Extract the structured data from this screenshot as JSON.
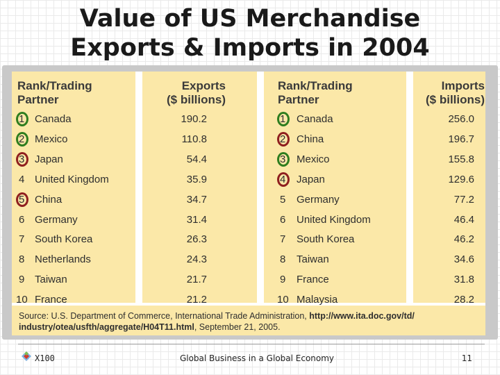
{
  "title": {
    "line1": "Value of US Merchandise",
    "line2": "Exports & Imports in 2004"
  },
  "exports": {
    "header_rank": [
      "Rank/Trading",
      "Partner"
    ],
    "header_value": [
      "Exports",
      "($ billions)"
    ],
    "rows": [
      {
        "rank": "1",
        "partner": "Canada",
        "value": "190.2",
        "circle": "green"
      },
      {
        "rank": "2",
        "partner": "Mexico",
        "value": "110.8",
        "circle": "green"
      },
      {
        "rank": "3",
        "partner": "Japan",
        "value": "54.4",
        "circle": "red"
      },
      {
        "rank": "4",
        "partner": "United Kingdom",
        "value": "35.9",
        "circle": ""
      },
      {
        "rank": "5",
        "partner": "China",
        "value": "34.7",
        "circle": "red"
      },
      {
        "rank": "6",
        "partner": "Germany",
        "value": "31.4",
        "circle": ""
      },
      {
        "rank": "7",
        "partner": "South Korea",
        "value": "26.3",
        "circle": ""
      },
      {
        "rank": "8",
        "partner": "Netherlands",
        "value": "24.3",
        "circle": ""
      },
      {
        "rank": "9",
        "partner": "Taiwan",
        "value": "21.7",
        "circle": ""
      },
      {
        "rank": "10",
        "partner": "France",
        "value": "21.2",
        "circle": ""
      }
    ]
  },
  "imports": {
    "header_rank": [
      "Rank/Trading",
      "Partner"
    ],
    "header_value": [
      "Imports",
      "($ billions)"
    ],
    "rows": [
      {
        "rank": "1",
        "partner": "Canada",
        "value": "256.0",
        "circle": "green"
      },
      {
        "rank": "2",
        "partner": "China",
        "value": "196.7",
        "circle": "red"
      },
      {
        "rank": "3",
        "partner": "Mexico",
        "value": "155.8",
        "circle": "green"
      },
      {
        "rank": "4",
        "partner": "Japan",
        "value": "129.6",
        "circle": "red"
      },
      {
        "rank": "5",
        "partner": "Germany",
        "value": "77.2",
        "circle": ""
      },
      {
        "rank": "6",
        "partner": "United Kingdom",
        "value": "46.4",
        "circle": ""
      },
      {
        "rank": "7",
        "partner": "South Korea",
        "value": "46.2",
        "circle": ""
      },
      {
        "rank": "8",
        "partner": "Taiwan",
        "value": "34.6",
        "circle": ""
      },
      {
        "rank": "9",
        "partner": "France",
        "value": "31.8",
        "circle": ""
      },
      {
        "rank": "10",
        "partner": "Malaysia",
        "value": "28.2",
        "circle": ""
      }
    ]
  },
  "source": {
    "text1": "Source: U.S. Department of Commerce, International Trade Administration, ",
    "url1": "http://www.ita.doc.gov/td/",
    "url2": "industry/otea/usfth/aggregate/H04T11.html",
    "text2": ", September 21, 2005."
  },
  "footer": {
    "course": "X100",
    "center": "Global Business in a Global Economy",
    "page": "11"
  },
  "colors": {
    "table_bg": "#fbe8a8",
    "circle_green": "#2e7d1f",
    "circle_red": "#8f1f1f"
  },
  "icons": {
    "logo": "diamond-logo-icon"
  }
}
